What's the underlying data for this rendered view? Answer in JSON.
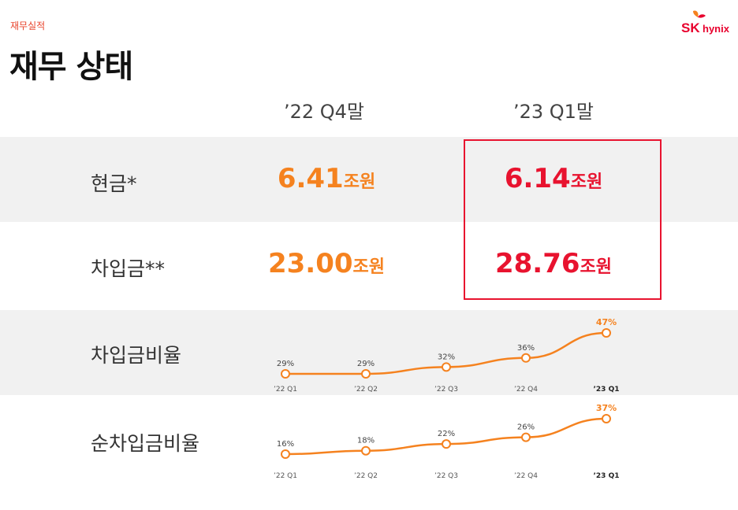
{
  "header": {
    "section_label": "재무실적",
    "title": "재무 상태",
    "logo_sk": "SK",
    "logo_hynix": "hynix"
  },
  "columns": [
    "’22 Q4말",
    "’23 Q1말"
  ],
  "rows": [
    {
      "label": "현금*",
      "values": [
        {
          "num": "6.41",
          "unit": "조원"
        },
        {
          "num": "6.14",
          "unit": "조원"
        }
      ]
    },
    {
      "label": "차입금**",
      "values": [
        {
          "num": "23.00",
          "unit": "조원"
        },
        {
          "num": "28.76",
          "unit": "조원"
        }
      ]
    }
  ],
  "colors": {
    "accent": "#f5821f",
    "highlight": "#e8132f"
  },
  "chart_data": [
    {
      "type": "line",
      "title": "차입금비율",
      "categories": [
        "’22 Q1",
        "’22 Q2",
        "’22 Q3",
        "’22 Q4",
        "’23 Q1"
      ],
      "values": [
        29,
        29,
        32,
        36,
        47
      ],
      "data_labels": [
        "29%",
        "29%",
        "32%",
        "36%",
        "47%"
      ],
      "unit": "%"
    },
    {
      "type": "line",
      "title": "순차입금비율",
      "categories": [
        "’22 Q1",
        "’22 Q2",
        "’22 Q3",
        "’22 Q4",
        "’23 Q1"
      ],
      "values": [
        16,
        18,
        22,
        26,
        37
      ],
      "data_labels": [
        "16%",
        "18%",
        "22%",
        "26%",
        "37%"
      ],
      "unit": "%"
    }
  ]
}
